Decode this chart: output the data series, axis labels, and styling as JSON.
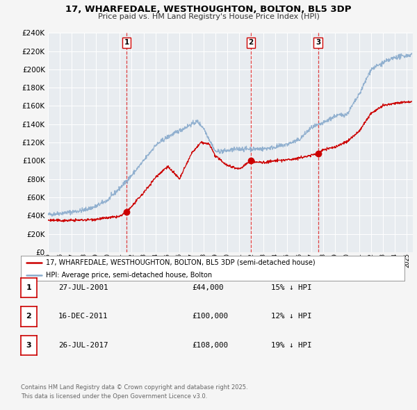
{
  "title": "17, WHARFEDALE, WESTHOUGHTON, BOLTON, BL5 3DP",
  "subtitle": "Price paid vs. HM Land Registry's House Price Index (HPI)",
  "legend_line1": "17, WHARFEDALE, WESTHOUGHTON, BOLTON, BL5 3DP (semi-detached house)",
  "legend_line2": "HPI: Average price, semi-detached house, Bolton",
  "footer_line1": "Contains HM Land Registry data © Crown copyright and database right 2025.",
  "footer_line2": "This data is licensed under the Open Government Licence v3.0.",
  "sale_color": "#cc0000",
  "hpi_color": "#88aacc",
  "bg_color": "#f5f5f5",
  "plot_bg_color": "#e8ecf0",
  "grid_color": "#ffffff",
  "ylim": [
    0,
    240000
  ],
  "yticks": [
    0,
    20000,
    40000,
    60000,
    80000,
    100000,
    120000,
    140000,
    160000,
    180000,
    200000,
    220000,
    240000
  ],
  "xlim_start": 1995.0,
  "xlim_end": 2025.5,
  "sales": [
    {
      "year": 2001.57,
      "price": 44000,
      "label": "1"
    },
    {
      "year": 2011.96,
      "price": 100000,
      "label": "2"
    },
    {
      "year": 2017.57,
      "price": 108000,
      "label": "3"
    }
  ],
  "table_rows": [
    {
      "num": "1",
      "date": "27-JUL-2001",
      "price": "£44,000",
      "hpi": "15% ↓ HPI"
    },
    {
      "num": "2",
      "date": "16-DEC-2011",
      "price": "£100,000",
      "hpi": "12% ↓ HPI"
    },
    {
      "num": "3",
      "date": "26-JUL-2017",
      "price": "£108,000",
      "hpi": "19% ↓ HPI"
    }
  ]
}
